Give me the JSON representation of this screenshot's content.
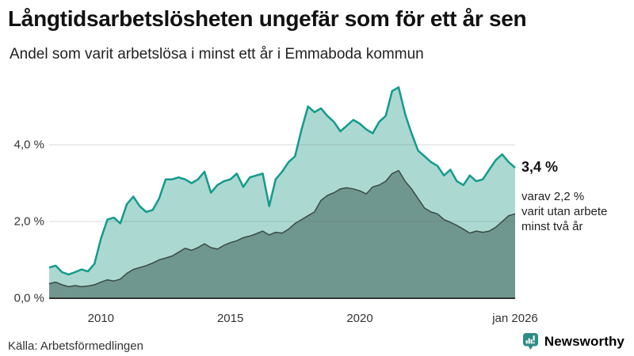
{
  "chart_data": {
    "type": "area",
    "title": "Långtidsarbetslösheten ungefär som för ett år sen",
    "subtitle": "Andel som varit arbetslösa i minst ett år i Emmaboda kommun",
    "source": "Källa: Arbetsförmedlingen",
    "x_unit": "decimal_year",
    "xlim": [
      2008,
      2026
    ],
    "ylim": [
      0,
      5.8
    ],
    "grid": "horizontal",
    "x": [
      2008,
      2008.25,
      2008.5,
      2008.75,
      2009,
      2009.25,
      2009.5,
      2009.75,
      2010,
      2010.25,
      2010.5,
      2010.75,
      2011,
      2011.25,
      2011.5,
      2011.75,
      2012,
      2012.25,
      2012.5,
      2012.75,
      2013,
      2013.25,
      2013.5,
      2013.75,
      2014,
      2014.25,
      2014.5,
      2014.75,
      2015,
      2015.25,
      2015.5,
      2015.75,
      2016,
      2016.25,
      2016.5,
      2016.75,
      2017,
      2017.25,
      2017.5,
      2017.75,
      2018,
      2018.25,
      2018.5,
      2018.75,
      2019,
      2019.25,
      2019.5,
      2019.75,
      2020,
      2020.25,
      2020.5,
      2020.75,
      2021,
      2021.25,
      2021.5,
      2021.75,
      2022,
      2022.25,
      2022.5,
      2022.75,
      2023,
      2023.25,
      2023.5,
      2023.75,
      2024,
      2024.25,
      2024.5,
      2024.75,
      2025,
      2025.25,
      2025.5,
      2025.75,
      2026
    ],
    "series": [
      {
        "name": "Andel arbetslösa minst ett år",
        "line_color": "#149a8c",
        "fill_color": "#abd9d1",
        "line_width": 2.5,
        "values": [
          0.8,
          0.85,
          0.68,
          0.62,
          0.68,
          0.75,
          0.7,
          0.9,
          1.55,
          2.05,
          2.1,
          1.95,
          2.45,
          2.65,
          2.4,
          2.25,
          2.3,
          2.6,
          3.1,
          3.1,
          3.15,
          3.1,
          3.0,
          3.1,
          3.3,
          2.75,
          2.95,
          3.05,
          3.1,
          3.25,
          2.9,
          3.15,
          3.2,
          3.25,
          2.4,
          3.1,
          3.3,
          3.55,
          3.7,
          4.4,
          5.0,
          4.85,
          4.95,
          4.75,
          4.6,
          4.35,
          4.5,
          4.65,
          4.55,
          4.4,
          4.3,
          4.6,
          4.75,
          5.4,
          5.5,
          4.8,
          4.3,
          3.85,
          3.7,
          3.55,
          3.45,
          3.2,
          3.35,
          3.05,
          2.95,
          3.2,
          3.05,
          3.1,
          3.35,
          3.6,
          3.75,
          3.55,
          3.4
        ]
      },
      {
        "name": "Andel arbetslösa minst två år",
        "line_color": "#3a4a46",
        "fill_color": "#70978f",
        "line_width": 1.5,
        "values": [
          0.38,
          0.42,
          0.35,
          0.3,
          0.33,
          0.3,
          0.32,
          0.35,
          0.42,
          0.48,
          0.45,
          0.5,
          0.65,
          0.75,
          0.8,
          0.85,
          0.92,
          1.0,
          1.05,
          1.1,
          1.2,
          1.3,
          1.25,
          1.32,
          1.42,
          1.32,
          1.28,
          1.38,
          1.45,
          1.5,
          1.58,
          1.62,
          1.68,
          1.75,
          1.65,
          1.72,
          1.7,
          1.8,
          1.95,
          2.05,
          2.15,
          2.25,
          2.55,
          2.68,
          2.75,
          2.85,
          2.88,
          2.85,
          2.8,
          2.72,
          2.9,
          2.95,
          3.05,
          3.25,
          3.33,
          3.05,
          2.85,
          2.6,
          2.35,
          2.25,
          2.2,
          2.05,
          1.98,
          1.9,
          1.8,
          1.7,
          1.75,
          1.72,
          1.75,
          1.85,
          2.0,
          2.15,
          2.2
        ]
      }
    ],
    "xticks": [
      {
        "x": 2010,
        "label": "2010"
      },
      {
        "x": 2015,
        "label": "2015"
      },
      {
        "x": 2020,
        "label": "2020"
      },
      {
        "x": 2026,
        "label": "jan 2026"
      }
    ],
    "yticks": [
      {
        "v": 0,
        "label": "0,0 %"
      },
      {
        "v": 2,
        "label": "2,0 %"
      },
      {
        "v": 4,
        "label": "4,0 %"
      }
    ],
    "annotations": {
      "end_value_primary": "3,4 %",
      "end_note_line1": "varav 2,2 %",
      "end_note_line2": "varit utan arbete",
      "end_note_line3": "minst två år"
    },
    "colors": {
      "grid": "#d9d9d9",
      "axis": "#333333"
    }
  },
  "footer": {
    "brand": "Newsworthy",
    "brand_color": "#2e8b84"
  }
}
